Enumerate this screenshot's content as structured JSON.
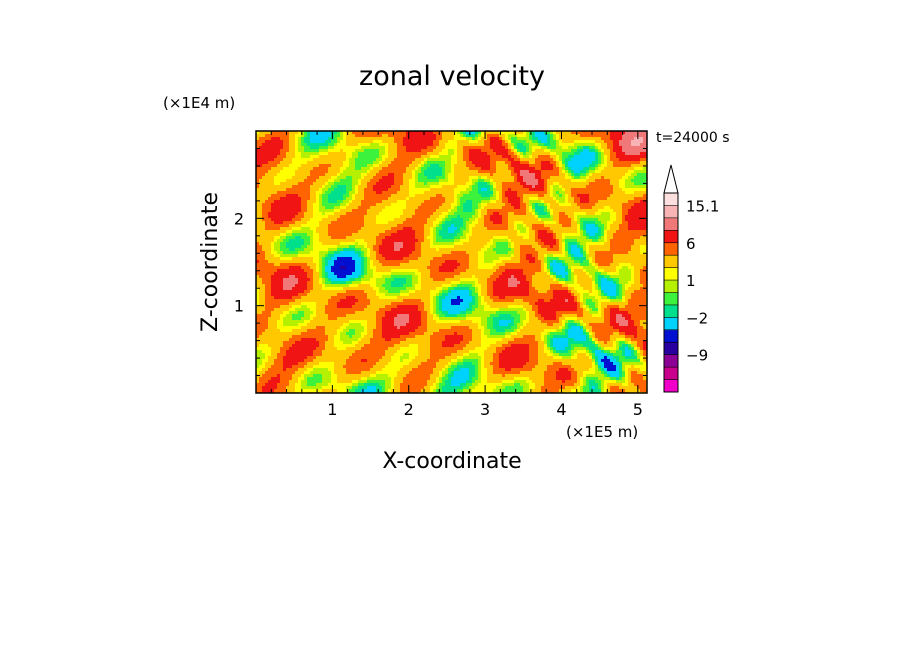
{
  "chart_data": {
    "type": "heatmap",
    "title": "zonal velocity",
    "xlabel": "X-coordinate",
    "ylabel": "Z-coordinate",
    "x_unit": "(×1E5 m)",
    "y_unit": "(×1E4 m)",
    "time_label": "t=24000 s",
    "xlim": [
      0,
      5.12
    ],
    "ylim": [
      0,
      3.0
    ],
    "x_ticks": [
      1,
      2,
      3,
      4,
      5
    ],
    "y_ticks": [
      1,
      2
    ],
    "x_tick_labels": [
      "1",
      "2",
      "3",
      "4",
      "5"
    ],
    "y_tick_labels": [
      "1",
      "2"
    ],
    "colorbar": {
      "levels": [
        -15,
        -12,
        -9,
        -6,
        -4,
        -2,
        -1,
        0,
        1,
        2,
        4,
        6,
        9,
        12,
        15.1
      ],
      "colors": [
        "#f000c8",
        "#c8008c",
        "#8c0096",
        "#2800a0",
        "#0010d0",
        "#00d2ff",
        "#00e08c",
        "#3cf23c",
        "#b4f000",
        "#ffff00",
        "#ffc800",
        "#ff6400",
        "#f01414",
        "#f07878",
        "#f8b4b4",
        "#fce0e0"
      ],
      "labeled_values": [
        15.1,
        6,
        1,
        -2,
        -9
      ],
      "labels": [
        "15.1",
        "6",
        "1",
        "−2",
        "−9"
      ],
      "extend": "max"
    }
  }
}
